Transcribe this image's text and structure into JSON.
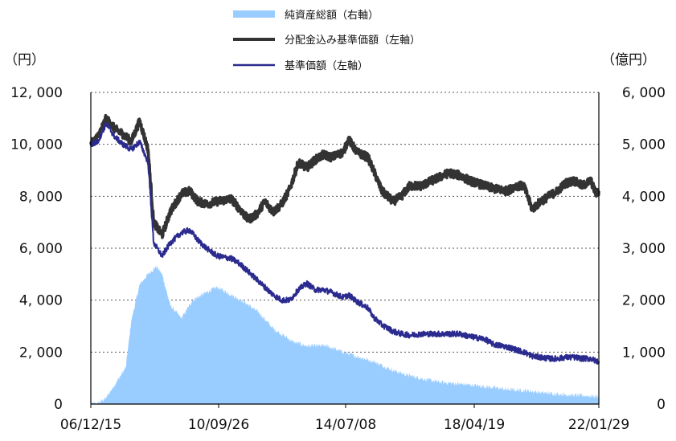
{
  "chart_data": {
    "type": "line",
    "left_unit": "（円）",
    "right_unit": "（億円）",
    "x_ticks": [
      "06/12/15",
      "10/09/26",
      "14/07/08",
      "18/04/19",
      "22/01/29"
    ],
    "y_left_ticks": [
      "0",
      "2, 000",
      "4, 000",
      "6, 000",
      "8, 000",
      "10, 000",
      "12, 000"
    ],
    "y_right_ticks": [
      "0",
      "1, 000",
      "2, 000",
      "3, 000",
      "4, 000",
      "5, 000",
      "6, 000"
    ],
    "y_left_range": [
      0,
      12000
    ],
    "y_right_range": [
      0,
      6000
    ],
    "grid": "horizontal-dotted",
    "legend_position": "top-center",
    "x_start": "2006-12-15",
    "x_end": "2022-02-28",
    "series": [
      {
        "name": "純資産総額（右軸）",
        "kind": "area",
        "axis": "right",
        "color": "#99ccff",
        "points": [
          [
            "2006-12-15",
            0
          ],
          [
            "2007-03-01",
            10
          ],
          [
            "2007-06-01",
            120
          ],
          [
            "2007-10-01",
            450
          ],
          [
            "2008-01-01",
            700
          ],
          [
            "2008-03-01",
            1600
          ],
          [
            "2008-06-01",
            2300
          ],
          [
            "2008-09-01",
            2500
          ],
          [
            "2008-12-01",
            2650
          ],
          [
            "2009-02-01",
            2500
          ],
          [
            "2009-05-01",
            1900
          ],
          [
            "2009-09-01",
            1650
          ],
          [
            "2010-01-01",
            2000
          ],
          [
            "2010-06-01",
            2150
          ],
          [
            "2010-09-26",
            2250
          ],
          [
            "2011-03-01",
            2100
          ],
          [
            "2011-08-01",
            1950
          ],
          [
            "2012-01-01",
            1750
          ],
          [
            "2012-06-01",
            1450
          ],
          [
            "2013-01-01",
            1200
          ],
          [
            "2013-06-01",
            1120
          ],
          [
            "2014-01-01",
            1120
          ],
          [
            "2014-07-08",
            1000
          ],
          [
            "2015-01-01",
            900
          ],
          [
            "2015-06-01",
            820
          ],
          [
            "2016-01-01",
            650
          ],
          [
            "2016-06-01",
            560
          ],
          [
            "2017-01-01",
            470
          ],
          [
            "2017-06-01",
            420
          ],
          [
            "2018-04-19",
            370
          ],
          [
            "2019-01-01",
            320
          ],
          [
            "2019-06-01",
            280
          ],
          [
            "2020-01-01",
            260
          ],
          [
            "2020-06-01",
            220
          ],
          [
            "2021-01-01",
            190
          ],
          [
            "2021-06-01",
            170
          ],
          [
            "2022-01-29",
            150
          ],
          [
            "2022-02-28",
            145
          ]
        ]
      },
      {
        "name": "分配金込み基準価額（左軸）",
        "kind": "line",
        "axis": "left",
        "color": "#333333",
        "points": [
          [
            "2006-12-15",
            10000
          ],
          [
            "2007-03-01",
            10300
          ],
          [
            "2007-06-01",
            11000
          ],
          [
            "2007-09-01",
            10600
          ],
          [
            "2007-12-01",
            10400
          ],
          [
            "2008-03-01",
            10100
          ],
          [
            "2008-06-01",
            10900
          ],
          [
            "2008-09-01",
            9800
          ],
          [
            "2008-11-01",
            7000
          ],
          [
            "2009-02-01",
            6500
          ],
          [
            "2009-05-01",
            7400
          ],
          [
            "2009-09-01",
            8100
          ],
          [
            "2009-12-01",
            8200
          ],
          [
            "2010-03-01",
            7800
          ],
          [
            "2010-06-01",
            7700
          ],
          [
            "2010-09-26",
            7800
          ],
          [
            "2011-03-01",
            7900
          ],
          [
            "2011-06-01",
            7500
          ],
          [
            "2011-09-01",
            7100
          ],
          [
            "2011-12-01",
            7300
          ],
          [
            "2012-03-01",
            7800
          ],
          [
            "2012-06-01",
            7400
          ],
          [
            "2012-09-01",
            7700
          ],
          [
            "2012-12-01",
            8300
          ],
          [
            "2013-03-01",
            9300
          ],
          [
            "2013-06-01",
            9100
          ],
          [
            "2013-09-01",
            9400
          ],
          [
            "2013-12-01",
            9600
          ],
          [
            "2014-03-01",
            9500
          ],
          [
            "2014-07-08",
            9700
          ],
          [
            "2014-09-01",
            10200
          ],
          [
            "2014-12-01",
            9700
          ],
          [
            "2015-04-01",
            9500
          ],
          [
            "2015-06-01",
            9000
          ],
          [
            "2015-09-01",
            8200
          ],
          [
            "2016-01-01",
            7800
          ],
          [
            "2016-04-01",
            8000
          ],
          [
            "2016-07-01",
            8400
          ],
          [
            "2016-11-01",
            8400
          ],
          [
            "2017-03-01",
            8600
          ],
          [
            "2017-09-01",
            8900
          ],
          [
            "2018-01-01",
            8800
          ],
          [
            "2018-04-19",
            8600
          ],
          [
            "2018-10-01",
            8400
          ],
          [
            "2019-01-01",
            8300
          ],
          [
            "2019-06-01",
            8200
          ],
          [
            "2019-09-01",
            8400
          ],
          [
            "2019-12-01",
            8400
          ],
          [
            "2020-03-01",
            7500
          ],
          [
            "2020-06-01",
            7800
          ],
          [
            "2020-09-01",
            8000
          ],
          [
            "2020-12-01",
            8200
          ],
          [
            "2021-03-01",
            8500
          ],
          [
            "2021-06-01",
            8600
          ],
          [
            "2021-09-01",
            8400
          ],
          [
            "2021-12-01",
            8600
          ],
          [
            "2022-01-29",
            8100
          ],
          [
            "2022-02-28",
            8200
          ]
        ]
      },
      {
        "name": "基準価額（左軸）",
        "kind": "line",
        "axis": "left",
        "color": "#2b2b8f",
        "points": [
          [
            "2006-12-15",
            10000
          ],
          [
            "2007-03-01",
            10100
          ],
          [
            "2007-06-01",
            10800
          ],
          [
            "2007-09-01",
            10300
          ],
          [
            "2007-12-01",
            10000
          ],
          [
            "2008-03-01",
            9800
          ],
          [
            "2008-06-01",
            10100
          ],
          [
            "2008-09-01",
            9300
          ],
          [
            "2008-11-01",
            6200
          ],
          [
            "2009-02-01",
            5700
          ],
          [
            "2009-05-01",
            6200
          ],
          [
            "2009-09-01",
            6600
          ],
          [
            "2009-12-01",
            6700
          ],
          [
            "2010-03-01",
            6300
          ],
          [
            "2010-06-01",
            6000
          ],
          [
            "2010-09-26",
            5700
          ],
          [
            "2011-03-01",
            5600
          ],
          [
            "2011-06-01",
            5400
          ],
          [
            "2011-09-01",
            5100
          ],
          [
            "2011-12-01",
            4800
          ],
          [
            "2012-03-01",
            4500
          ],
          [
            "2012-06-01",
            4200
          ],
          [
            "2012-09-01",
            4000
          ],
          [
            "2012-12-01",
            4000
          ],
          [
            "2013-03-01",
            4400
          ],
          [
            "2013-06-01",
            4650
          ],
          [
            "2013-09-01",
            4400
          ],
          [
            "2013-12-01",
            4400
          ],
          [
            "2014-03-01",
            4300
          ],
          [
            "2014-07-08",
            4100
          ],
          [
            "2014-09-01",
            4200
          ],
          [
            "2014-12-01",
            3950
          ],
          [
            "2015-04-01",
            3700
          ],
          [
            "2015-06-01",
            3350
          ],
          [
            "2015-09-01",
            3050
          ],
          [
            "2016-01-01",
            2800
          ],
          [
            "2016-04-01",
            2700
          ],
          [
            "2016-07-01",
            2650
          ],
          [
            "2016-11-01",
            2700
          ],
          [
            "2017-03-01",
            2700
          ],
          [
            "2017-09-01",
            2700
          ],
          [
            "2018-01-01",
            2700
          ],
          [
            "2018-04-19",
            2600
          ],
          [
            "2018-10-01",
            2500
          ],
          [
            "2019-01-01",
            2300
          ],
          [
            "2019-06-01",
            2200
          ],
          [
            "2019-09-01",
            2100
          ],
          [
            "2019-12-01",
            2000
          ],
          [
            "2020-03-01",
            1850
          ],
          [
            "2020-06-01",
            1800
          ],
          [
            "2020-09-01",
            1750
          ],
          [
            "2020-12-01",
            1750
          ],
          [
            "2021-03-01",
            1800
          ],
          [
            "2021-06-01",
            1800
          ],
          [
            "2021-09-01",
            1750
          ],
          [
            "2021-12-01",
            1750
          ],
          [
            "2022-01-29",
            1650
          ],
          [
            "2022-02-28",
            1650
          ]
        ]
      }
    ]
  }
}
